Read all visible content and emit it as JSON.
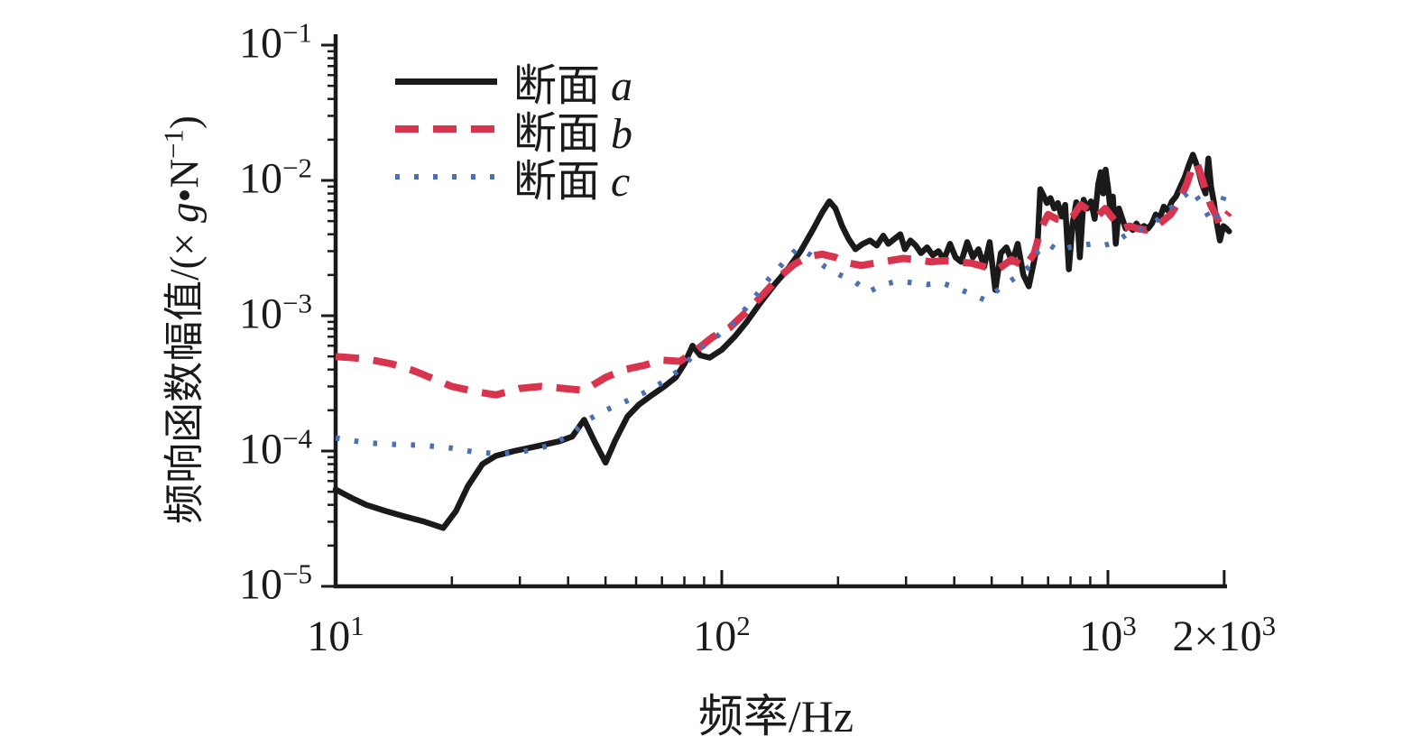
{
  "figure": {
    "x_axis_label": "频率/Hz",
    "y_label_prefix": "频响函数幅值/(× ",
    "y_label_g": "g",
    "y_label_unit": "•N",
    "y_label_exp": "−1",
    "y_label_close": ")"
  },
  "legend": {
    "items": [
      {
        "label": "断面",
        "letter": "a",
        "color": "#1a1a1a",
        "style": "solid"
      },
      {
        "label": "断面",
        "letter": "b",
        "color": "#d8344e",
        "style": "dashed"
      },
      {
        "label": "断面",
        "letter": "c",
        "color": "#4a6fb4",
        "style": "dotted"
      }
    ]
  },
  "chart_data": {
    "type": "line",
    "title": "",
    "xlabel": "频率/Hz",
    "ylabel": "频响函数幅值/(× g•N−1)",
    "x_scale": "log",
    "y_scale": "log",
    "xlim": [
      10,
      2100
    ],
    "ylim": [
      1e-05,
      0.1
    ],
    "grid": false,
    "legend_position": "upper-left",
    "axis_color": "#1a1a1a",
    "x_ticks": [
      {
        "label": "10",
        "exp": "1",
        "value": 10
      },
      {
        "label": "10",
        "exp": "2",
        "value": 100
      },
      {
        "label": "10",
        "exp": "3",
        "value": 1000
      },
      {
        "label": "2×10",
        "exp": "3",
        "value": 2000
      }
    ],
    "y_ticks": [
      {
        "label": "10",
        "exp": "−1",
        "value": 0.1
      },
      {
        "label": "10",
        "exp": "−2",
        "value": 0.01
      },
      {
        "label": "10",
        "exp": "−3",
        "value": 0.001
      },
      {
        "label": "10",
        "exp": "−4",
        "value": 0.0001
      },
      {
        "label": "10",
        "exp": "−5",
        "value": 1e-05
      }
    ],
    "series": [
      {
        "key": "a",
        "name": "断面 a",
        "style": "solid",
        "color": "#1a1a1a",
        "width": 6.5,
        "x": [
          10,
          11,
          12,
          13.5,
          15,
          17,
          19,
          20.5,
          22,
          24,
          26,
          29,
          32,
          35,
          38,
          41,
          44,
          47,
          50,
          53,
          57,
          61,
          66,
          71,
          76,
          80,
          84,
          88,
          93,
          100,
          108,
          116,
          126,
          137,
          148,
          160,
          172,
          182,
          190,
          197,
          205,
          213,
          222,
          232,
          242,
          252,
          262,
          270,
          280,
          290,
          298,
          308,
          318,
          328,
          340,
          352,
          364,
          376,
          390,
          403,
          417,
          432,
          447,
          462,
          478,
          494,
          511,
          528,
          546,
          565,
          584,
          604,
          624,
          645,
          658,
          668,
          680,
          695,
          710,
          726,
          742,
          758,
          775,
          792,
          810,
          828,
          846,
          865,
          884,
          904,
          924,
          944,
          958,
          972,
          986,
          1000,
          1015,
          1030,
          1048,
          1068,
          1090,
          1112,
          1135,
          1160,
          1185,
          1210,
          1240,
          1270,
          1300,
          1330,
          1360,
          1395,
          1430,
          1465,
          1500,
          1540,
          1580,
          1620,
          1660,
          1690,
          1720,
          1750,
          1790,
          1820,
          1850,
          1880,
          1910,
          1950,
          1990,
          2030,
          2060
        ],
        "y": [
          5.2e-05,
          4.5e-05,
          4e-05,
          3.6e-05,
          3.3e-05,
          3e-05,
          2.7e-05,
          3.6e-05,
          5.5e-05,
          8e-05,
          9.2e-05,
          0.0001,
          0.000106,
          0.000112,
          0.000118,
          0.000128,
          0.00017,
          0.000115,
          8.2e-05,
          0.00012,
          0.00018,
          0.00022,
          0.00026,
          0.0003,
          0.00035,
          0.00044,
          0.0006,
          0.00051,
          0.00049,
          0.00056,
          0.0007,
          0.0009,
          0.00125,
          0.0017,
          0.0022,
          0.003,
          0.0043,
          0.0058,
          0.007,
          0.0062,
          0.0046,
          0.0037,
          0.0031,
          0.0034,
          0.0036,
          0.0033,
          0.0039,
          0.0034,
          0.0037,
          0.004,
          0.0031,
          0.0036,
          0.0033,
          0.0029,
          0.0032,
          0.0028,
          0.003,
          0.0026,
          0.0034,
          0.0027,
          0.0025,
          0.0035,
          0.0027,
          0.0031,
          0.0023,
          0.0035,
          0.00155,
          0.0029,
          0.0032,
          0.0025,
          0.0034,
          0.002,
          0.00165,
          0.0026,
          0.0036,
          0.0086,
          0.0078,
          0.0068,
          0.0074,
          0.0062,
          0.0068,
          0.0054,
          0.0066,
          0.0022,
          0.0048,
          0.0069,
          0.0027,
          0.0072,
          0.0062,
          0.007,
          0.0052,
          0.0094,
          0.0115,
          0.008,
          0.012,
          0.009,
          0.006,
          0.0076,
          0.0034,
          0.0062,
          0.0052,
          0.0044,
          0.0046,
          0.0043,
          0.0048,
          0.0044,
          0.0046,
          0.0044,
          0.0048,
          0.0056,
          0.0052,
          0.0064,
          0.006,
          0.007,
          0.0076,
          0.009,
          0.0105,
          0.013,
          0.0155,
          0.0135,
          0.0115,
          0.0095,
          0.008,
          0.0145,
          0.009,
          0.007,
          0.005,
          0.0036,
          0.0046,
          0.0044,
          0.0042
        ]
      },
      {
        "key": "b",
        "name": "断面 b",
        "style": "dashed",
        "color": "#d8344e",
        "width": 8,
        "x": [
          10,
          12,
          14,
          16,
          18,
          20,
          23,
          26,
          30,
          34,
          39,
          44,
          50,
          56,
          63,
          70,
          78,
          86,
          95,
          105,
          115,
          127,
          140,
          154,
          168,
          182,
          197,
          213,
          230,
          250,
          272,
          295,
          320,
          347,
          376,
          408,
          442,
          479,
          519,
          563,
          610,
          645,
          670,
          700,
          735,
          772,
          810,
          850,
          893,
          937,
          984,
          1033,
          1085,
          1139,
          1196,
          1256,
          1319,
          1385,
          1454,
          1527,
          1603,
          1660,
          1700,
          1750,
          1800,
          1850,
          1900,
          1950,
          2000,
          2060
        ],
        "y": [
          0.0005,
          0.00048,
          0.00044,
          0.00039,
          0.00034,
          0.0003,
          0.000275,
          0.00026,
          0.00029,
          0.0003,
          0.00029,
          0.00028,
          0.00035,
          0.0004,
          0.00043,
          0.00047,
          0.00046,
          0.00056,
          0.0007,
          0.00082,
          0.00105,
          0.0014,
          0.0019,
          0.0024,
          0.00275,
          0.00285,
          0.0027,
          0.00245,
          0.00235,
          0.00245,
          0.00255,
          0.00265,
          0.0026,
          0.0025,
          0.00255,
          0.0025,
          0.00245,
          0.0023,
          0.0022,
          0.0026,
          0.0023,
          0.0029,
          0.0044,
          0.0056,
          0.0052,
          0.005,
          0.0054,
          0.0066,
          0.006,
          0.0054,
          0.0062,
          0.0052,
          0.0044,
          0.0046,
          0.0044,
          0.0043,
          0.0045,
          0.005,
          0.0056,
          0.007,
          0.0095,
          0.013,
          0.0135,
          0.0105,
          0.008,
          0.0065,
          0.0056,
          0.0047,
          0.0052,
          0.0058
        ]
      },
      {
        "key": "c",
        "name": "断面 c",
        "style": "dotted",
        "color": "#4a6fb4",
        "width": 6,
        "x": [
          10,
          12,
          14,
          17,
          20,
          23,
          27,
          31,
          36,
          41,
          45,
          50,
          56,
          63,
          70,
          78,
          87,
          97,
          108,
          120,
          133,
          147,
          158,
          170,
          185,
          202,
          220,
          240,
          262,
          286,
          312,
          340,
          371,
          405,
          442,
          482,
          526,
          574,
          626,
          660,
          700,
          745,
          795,
          850,
          910,
          975,
          1045,
          1120,
          1200,
          1285,
          1375,
          1470,
          1570,
          1650,
          1730,
          1810,
          1880,
          1950,
          2030
        ],
        "y": [
          0.000125,
          0.000115,
          0.000112,
          0.00011,
          0.000105,
          9.8e-05,
          9.5e-05,
          0.0001,
          0.00011,
          0.000135,
          0.00017,
          0.0002,
          0.00023,
          0.00027,
          0.00032,
          0.0004,
          0.00056,
          0.0007,
          0.0009,
          0.0013,
          0.0019,
          0.0026,
          0.0032,
          0.0028,
          0.0023,
          0.002,
          0.0018,
          0.0015,
          0.0017,
          0.0018,
          0.00175,
          0.0017,
          0.00175,
          0.0016,
          0.00145,
          0.0013,
          0.0016,
          0.0019,
          0.0023,
          0.003,
          0.0034,
          0.003,
          0.0032,
          0.0033,
          0.0034,
          0.0033,
          0.0035,
          0.004,
          0.0043,
          0.0046,
          0.0054,
          0.0064,
          0.0076,
          0.0086,
          0.007,
          0.0056,
          0.0048,
          0.0062,
          0.0086
        ]
      }
    ]
  }
}
